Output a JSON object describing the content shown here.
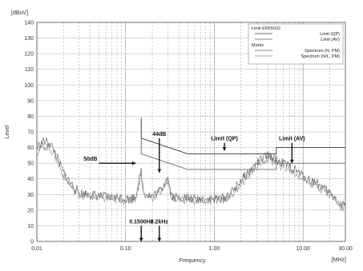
{
  "chart_data": {
    "type": "line",
    "scale": "log-x",
    "xlabel": "Frequency",
    "ylabel": "Level",
    "y_unit": "[dBuV]",
    "x_unit": "[MHz]",
    "xlim": [
      0.01,
      30
    ],
    "ylim": [
      0,
      140
    ],
    "xticks": [
      {
        "value": 0.01,
        "label": "0.01"
      },
      {
        "value": 0.1,
        "label": "0.10"
      },
      {
        "value": 1,
        "label": "1.00"
      },
      {
        "value": 10,
        "label": "10.00"
      },
      {
        "value": 30,
        "label": "30.00"
      }
    ],
    "yticks": [
      0,
      10,
      20,
      30,
      40,
      50,
      60,
      70,
      80,
      90,
      100,
      110,
      120,
      130,
      140
    ],
    "grid": true,
    "legend": {
      "placement": "top-right",
      "groups": [
        {
          "title": "Limit EN55022",
          "items": [
            "Limit (QP)",
            "Limit (AV)"
          ]
        },
        {
          "title": "Marks",
          "items": [
            "Spectrum (N, PM)",
            "Spectrum (N/L, PM)"
          ]
        }
      ]
    },
    "series": [
      {
        "name": "Limit (QP)",
        "style": "solid",
        "points": [
          [
            0.15,
            79
          ],
          [
            0.15,
            66
          ],
          [
            0.5,
            56
          ],
          [
            5,
            56
          ],
          [
            5,
            60
          ],
          [
            30,
            60
          ]
        ]
      },
      {
        "name": "Limit (AV)",
        "style": "solid",
        "points": [
          [
            0.15,
            66
          ],
          [
            0.15,
            56
          ],
          [
            0.5,
            46
          ],
          [
            5,
            46
          ],
          [
            5,
            50
          ],
          [
            30,
            50
          ]
        ]
      },
      {
        "name": "Spectrum (N, PM)",
        "style": "noisy",
        "points": [
          [
            0.01,
            60
          ],
          [
            0.012,
            64
          ],
          [
            0.014,
            63
          ],
          [
            0.016,
            57
          ],
          [
            0.018,
            50
          ],
          [
            0.02,
            44
          ],
          [
            0.025,
            36
          ],
          [
            0.03,
            31
          ],
          [
            0.04,
            30
          ],
          [
            0.05,
            29
          ],
          [
            0.07,
            28
          ],
          [
            0.09,
            28
          ],
          [
            0.11,
            27
          ],
          [
            0.13,
            29
          ],
          [
            0.15,
            45
          ],
          [
            0.16,
            31
          ],
          [
            0.2,
            29
          ],
          [
            0.25,
            33
          ],
          [
            0.3,
            41
          ],
          [
            0.33,
            29
          ],
          [
            0.4,
            28
          ],
          [
            0.5,
            28
          ],
          [
            0.6,
            27
          ],
          [
            0.8,
            27
          ],
          [
            1.0,
            27
          ],
          [
            1.3,
            28
          ],
          [
            1.6,
            32
          ],
          [
            2.0,
            39
          ],
          [
            2.5,
            45
          ],
          [
            3,
            50
          ],
          [
            3.5,
            53
          ],
          [
            4,
            55
          ],
          [
            5,
            52
          ],
          [
            6,
            50
          ],
          [
            7,
            48
          ],
          [
            9,
            44
          ],
          [
            11,
            40
          ],
          [
            14,
            38
          ],
          [
            17,
            34
          ],
          [
            20,
            31
          ],
          [
            24,
            27
          ],
          [
            27,
            23
          ],
          [
            30,
            24
          ]
        ]
      },
      {
        "name": "Spectrum (N/L, PM)",
        "style": "noisy",
        "points": [
          [
            0.01,
            57
          ],
          [
            0.012,
            61
          ],
          [
            0.014,
            60
          ],
          [
            0.016,
            55
          ],
          [
            0.018,
            48
          ],
          [
            0.02,
            42
          ],
          [
            0.025,
            34
          ],
          [
            0.03,
            30
          ],
          [
            0.04,
            29
          ],
          [
            0.05,
            28
          ],
          [
            0.07,
            27
          ],
          [
            0.09,
            27
          ],
          [
            0.11,
            26
          ],
          [
            0.13,
            28
          ],
          [
            0.15,
            43
          ],
          [
            0.16,
            30
          ],
          [
            0.2,
            28
          ],
          [
            0.25,
            32
          ],
          [
            0.3,
            39
          ],
          [
            0.33,
            28
          ],
          [
            0.4,
            27
          ],
          [
            0.5,
            27
          ],
          [
            0.6,
            26
          ],
          [
            0.8,
            26
          ],
          [
            1.0,
            26
          ],
          [
            1.3,
            27
          ],
          [
            1.6,
            30
          ],
          [
            2.0,
            37
          ],
          [
            2.5,
            43
          ],
          [
            3,
            48
          ],
          [
            3.5,
            51
          ],
          [
            4,
            53
          ],
          [
            5,
            50
          ],
          [
            6,
            48
          ],
          [
            7,
            46
          ],
          [
            9,
            42
          ],
          [
            11,
            39
          ],
          [
            14,
            36
          ],
          [
            17,
            33
          ],
          [
            20,
            30
          ],
          [
            24,
            26
          ],
          [
            27,
            22
          ],
          [
            30,
            23
          ]
        ]
      }
    ],
    "annotations": [
      {
        "text": "50dB",
        "type": "arrow-right",
        "from": [
          0.05,
          50
        ],
        "to": [
          0.13,
          50
        ]
      },
      {
        "text": "44dB",
        "type": "arrow-down",
        "from": [
          0.24,
          66
        ],
        "to": [
          0.24,
          44
        ]
      },
      {
        "text": "Limit (QP)",
        "type": "arrow-down",
        "from": [
          1.3,
          63
        ],
        "to": [
          1.3,
          58
        ]
      },
      {
        "text": "Limit (AV)",
        "type": "arrow-down",
        "from": [
          7.5,
          63
        ],
        "to": [
          7.5,
          50
        ]
      },
      {
        "text": "0.1500Hz",
        "type": "arrow-down",
        "from": [
          0.15,
          10
        ],
        "to": [
          0.15,
          0
        ]
      },
      {
        "text": "0.2kHz",
        "type": "arrow-down",
        "from": [
          0.24,
          10
        ],
        "to": [
          0.24,
          0
        ]
      }
    ]
  }
}
